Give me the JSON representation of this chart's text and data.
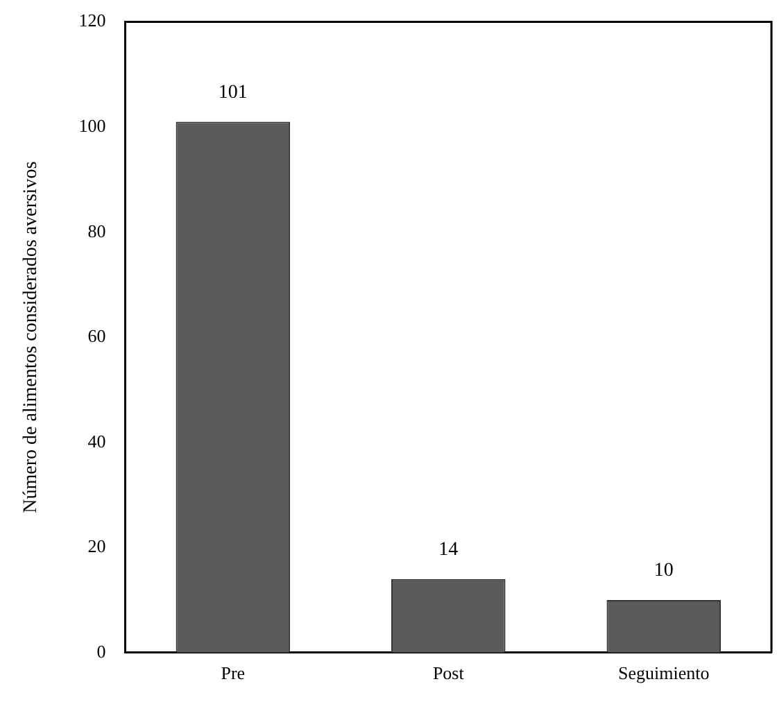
{
  "chart_data": {
    "type": "bar",
    "ylabel": "Número de alimentos considerados aversivos",
    "categories": [
      "Pre",
      "Post",
      "Seguimiento"
    ],
    "values": [
      101,
      14,
      10
    ],
    "color": "#5a5a5a",
    "ylim": [
      0,
      120
    ],
    "yticks": [
      0,
      20,
      40,
      60,
      80,
      100,
      120
    ],
    "grid": false,
    "legend": false,
    "data_labels": true
  }
}
